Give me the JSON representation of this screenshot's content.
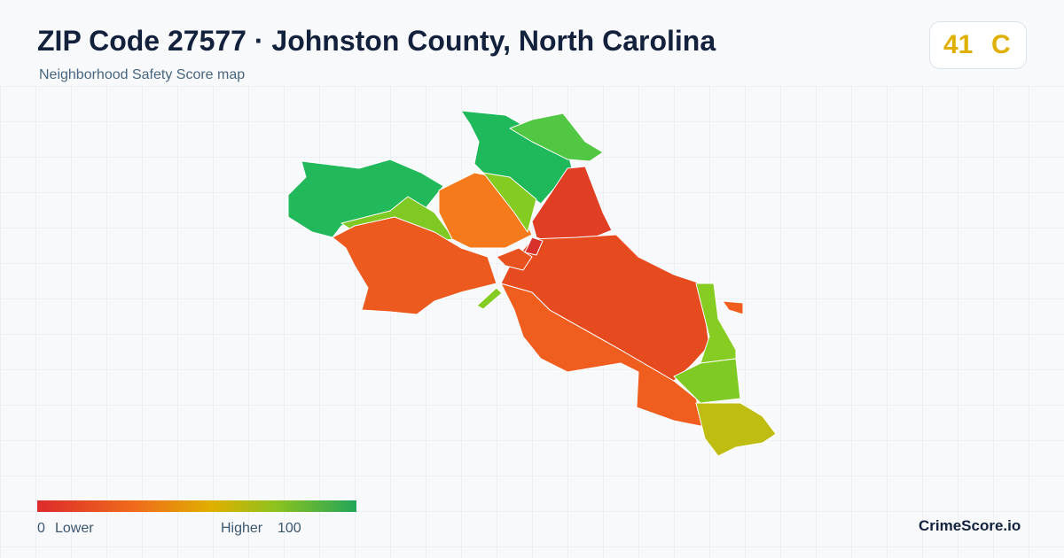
{
  "header": {
    "title": "ZIP Code 27577 · Johnston County, North Carolina",
    "subtitle": "Neighborhood Safety Score map"
  },
  "score": {
    "value": 41,
    "grade": "C"
  },
  "legend": {
    "min": 0,
    "min_label": "Lower",
    "max_label": "Higher",
    "max": 100
  },
  "footer": {
    "brand": "CrimeScore.io"
  }
}
